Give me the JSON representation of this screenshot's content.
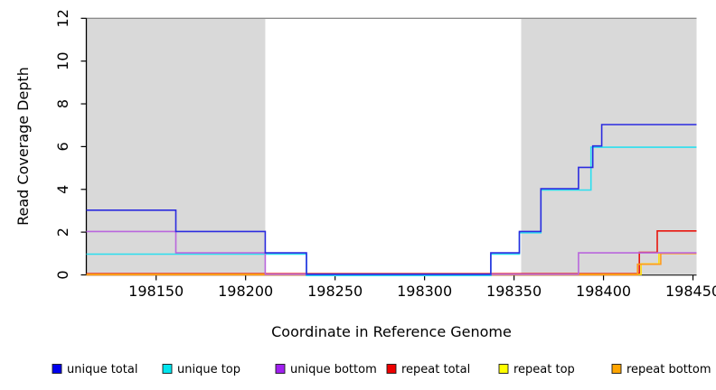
{
  "chart_data": {
    "type": "line",
    "subtype": "step",
    "title": "",
    "xlabel": "Coordinate in Reference Genome",
    "ylabel": "Read Coverage Depth",
    "xlim": [
      198111,
      198452
    ],
    "ylim": [
      0,
      12
    ],
    "x_ticks": [
      198150,
      198200,
      198250,
      198300,
      198350,
      198400,
      198450
    ],
    "y_ticks": [
      0,
      2,
      4,
      6,
      8,
      10,
      12
    ],
    "grid": false,
    "legend_position": "bottom",
    "shade_color": "#d9d9d9",
    "top_boundary_line": {
      "y": 12,
      "color": "#8c8c8c"
    },
    "axis_color": "#000000",
    "shaded_regions": [
      {
        "x0": 198111,
        "x1": 198211
      },
      {
        "x0": 198354,
        "x1": 198452
      }
    ],
    "series": [
      {
        "name": "unique total",
        "line_color": "#2b2bdf",
        "legend_color": "#0000ee",
        "steps": [
          [
            198111,
            3
          ],
          [
            198161,
            2
          ],
          [
            198211,
            1
          ],
          [
            198234,
            0
          ],
          [
            198337,
            1
          ],
          [
            198353,
            2
          ],
          [
            198365,
            4
          ],
          [
            198386,
            5
          ],
          [
            198394,
            6
          ],
          [
            198399,
            7
          ],
          [
            198452,
            7
          ]
        ]
      },
      {
        "name": "unique top",
        "line_color": "#2adfef",
        "legend_color": "#00e5ee",
        "steps": [
          [
            198111,
            1
          ],
          [
            198234,
            0
          ],
          [
            198337,
            1
          ],
          [
            198353,
            2
          ],
          [
            198365,
            4
          ],
          [
            198393,
            6
          ],
          [
            198452,
            6
          ]
        ]
      },
      {
        "name": "unique bottom",
        "line_color": "#b967dd",
        "legend_color": "#a020f0",
        "steps": [
          [
            198111,
            2
          ],
          [
            198161,
            1
          ],
          [
            198211,
            0
          ],
          [
            198386,
            1
          ],
          [
            198452,
            1
          ]
        ]
      },
      {
        "name": "repeat total",
        "line_color": "#e8150d",
        "legend_color": "#ee0000",
        "steps": [
          [
            198111,
            0
          ],
          [
            198420,
            1
          ],
          [
            198430,
            2
          ],
          [
            198452,
            2
          ]
        ]
      },
      {
        "name": "repeat top",
        "line_color": "#ffdf0e",
        "legend_color": "#ffff00",
        "steps": [
          [
            198111,
            0
          ],
          [
            198421,
            0.5
          ],
          [
            198431,
            1
          ],
          [
            198452,
            1
          ]
        ]
      },
      {
        "name": "repeat bottom",
        "line_color": "#ff9c1e",
        "legend_color": "#ffa500",
        "steps": [
          [
            198111,
            0
          ],
          [
            198419,
            0.5
          ],
          [
            198432,
            1
          ],
          [
            198452,
            1
          ]
        ]
      }
    ]
  }
}
